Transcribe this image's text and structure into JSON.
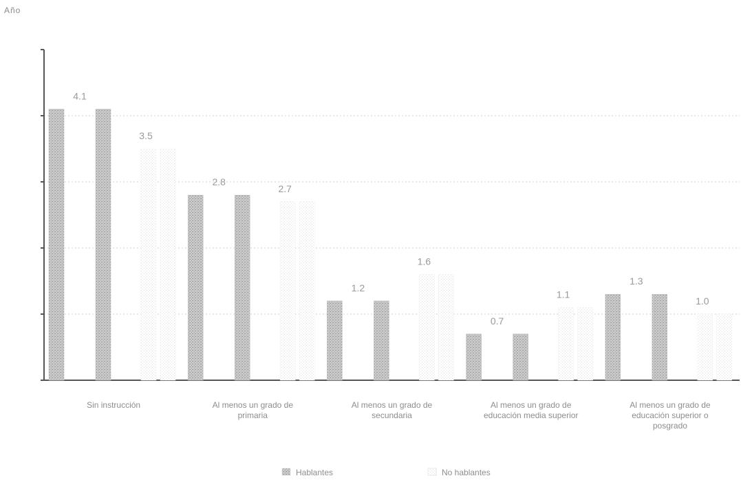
{
  "corner_label": "Año",
  "chart_data": {
    "type": "bar",
    "title": "",
    "xlabel": "",
    "ylabel": "",
    "ylim": [
      0,
      5
    ],
    "grid": true,
    "categories": [
      "Sin instrucción",
      "Al menos un grado de primaria",
      "Al menos un grado de secundaria",
      "Al menos un grado de educación media superior",
      "Al menos un grado de educación superior o posgrado"
    ],
    "series": [
      {
        "name": "Hablantes",
        "values": [
          4.1,
          2.8,
          1.2,
          0.7,
          1.3
        ],
        "color": "#b3b3b3"
      },
      {
        "name": "No hablantes",
        "values": [
          3.5,
          2.7,
          1.6,
          1.1,
          1.0
        ],
        "color": "#e4e4e4"
      }
    ],
    "value_labels": [
      "4.1",
      "2.8",
      "1.2",
      "0.7",
      "1.3",
      "3.5",
      "2.7",
      "1.6",
      "1.1",
      "1.0"
    ],
    "legend": {
      "position": "bottom"
    }
  }
}
